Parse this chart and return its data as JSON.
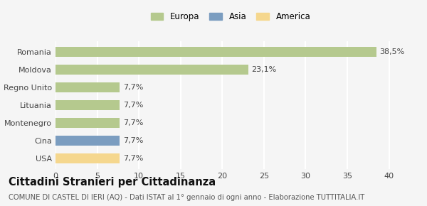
{
  "categories": [
    "Romania",
    "Moldova",
    "Regno Unito",
    "Lituania",
    "Montenegro",
    "Cina",
    "USA"
  ],
  "values": [
    38.5,
    23.1,
    7.7,
    7.7,
    7.7,
    7.7,
    7.7
  ],
  "bar_colors": [
    "#b5c98e",
    "#b5c98e",
    "#b5c98e",
    "#b5c98e",
    "#b5c98e",
    "#7b9dc0",
    "#f5d78e"
  ],
  "labels": [
    "38,5%",
    "23,1%",
    "7,7%",
    "7,7%",
    "7,7%",
    "7,7%",
    "7,7%"
  ],
  "legend": [
    {
      "label": "Europa",
      "color": "#b5c98e"
    },
    {
      "label": "Asia",
      "color": "#7b9dc0"
    },
    {
      "label": "America",
      "color": "#f5d78e"
    }
  ],
  "xlim": [
    0,
    42
  ],
  "xticks": [
    0,
    5,
    10,
    15,
    20,
    25,
    30,
    35,
    40
  ],
  "title": "Cittadini Stranieri per Cittadinanza",
  "subtitle": "COMUNE DI CASTEL DI IERI (AQ) - Dati ISTAT al 1° gennaio di ogni anno - Elaborazione TUTTITALIA.IT",
  "background_color": "#f5f5f5",
  "grid_color": "#ffffff",
  "bar_height": 0.55,
  "label_fontsize": 8.0,
  "tick_fontsize": 8.0,
  "title_fontsize": 10.5,
  "subtitle_fontsize": 7.2,
  "legend_fontsize": 8.5
}
